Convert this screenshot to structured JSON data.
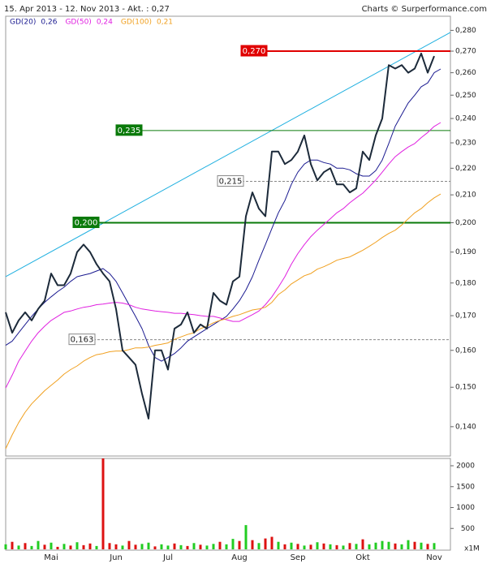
{
  "chart_data": {
    "type": "line",
    "header_left": "15. Apr 2013 - 12. Nov 2013 - Akt. : 0,27",
    "header_right": "Charts © Surperformance.com",
    "log_scale": true,
    "ylim": [
      0.133,
      0.287
    ],
    "yticks": [
      {
        "value": 0.28,
        "label": "0,280"
      },
      {
        "value": 0.27,
        "label": "0,270"
      },
      {
        "value": 0.26,
        "label": "0,260"
      },
      {
        "value": 0.25,
        "label": "0,250"
      },
      {
        "value": 0.24,
        "label": "0,240"
      },
      {
        "value": 0.23,
        "label": "0,230"
      },
      {
        "value": 0.22,
        "label": "0,220"
      },
      {
        "value": 0.21,
        "label": "0,210"
      },
      {
        "value": 0.2,
        "label": "0,200"
      },
      {
        "value": 0.19,
        "label": "0,190"
      },
      {
        "value": 0.18,
        "label": "0,180"
      },
      {
        "value": 0.17,
        "label": "0,170"
      },
      {
        "value": 0.16,
        "label": "0,160"
      },
      {
        "value": 0.15,
        "label": "0,150"
      },
      {
        "value": 0.14,
        "label": "0,140"
      }
    ],
    "categories": [
      null,
      null,
      null,
      null,
      null,
      null,
      null,
      "Mai",
      null,
      null,
      null,
      null,
      null,
      null,
      null,
      null,
      null,
      "Jun",
      null,
      null,
      null,
      null,
      null,
      null,
      null,
      "Jul",
      null,
      null,
      null,
      null,
      null,
      null,
      null,
      null,
      null,
      null,
      "Aug",
      null,
      null,
      null,
      null,
      null,
      null,
      null,
      null,
      "Sep",
      null,
      null,
      null,
      null,
      null,
      null,
      null,
      null,
      null,
      "Okt",
      null,
      null,
      null,
      null,
      null,
      null,
      null,
      null,
      null,
      null,
      "Nov",
      null,
      null
    ],
    "series": [
      {
        "color": "#1c2a3a",
        "values": [
          0.171,
          0.165,
          0.1686,
          0.171,
          0.1686,
          0.172,
          0.1745,
          0.183,
          0.1793,
          0.1793,
          0.183,
          0.19,
          0.1925,
          0.19,
          0.186,
          0.183,
          0.1805,
          0.172,
          0.16,
          0.158,
          0.156,
          0.1483,
          0.142,
          0.16,
          0.16,
          0.1547,
          0.1662,
          0.1674,
          0.171,
          0.165,
          0.1674,
          0.1662,
          0.1769,
          0.1745,
          0.1733,
          0.1805,
          0.182,
          0.2023,
          0.2109,
          0.205,
          0.2023,
          0.2265,
          0.2265,
          0.2216,
          0.2232,
          0.2265,
          0.233,
          0.2216,
          0.2154,
          0.2185,
          0.22,
          0.2139,
          0.2139,
          0.2109,
          0.2124,
          0.2265,
          0.2232,
          0.233,
          0.24,
          0.2635,
          0.2619,
          0.2635,
          0.26,
          0.2619,
          0.2689,
          0.26,
          0.2677,
          null,
          null
        ]
      },
      {
        "name": "GD(20)",
        "last_label": "0,26",
        "color": "#1a1a90",
        "values": [
          0.1614,
          0.1626,
          0.165,
          0.1674,
          0.1698,
          0.172,
          0.174,
          0.1757,
          0.1773,
          0.1787,
          0.1805,
          0.182,
          0.1825,
          0.183,
          0.1838,
          0.1846,
          0.183,
          0.1805,
          0.1769,
          0.1733,
          0.1698,
          0.1662,
          0.1614,
          0.158,
          0.157,
          0.158,
          0.1591,
          0.1607,
          0.1626,
          0.1638,
          0.165,
          0.1662,
          0.1674,
          0.1686,
          0.1698,
          0.172,
          0.1745,
          0.1778,
          0.182,
          0.1873,
          0.1925,
          0.198,
          0.2035,
          0.2079,
          0.2139,
          0.2185,
          0.2216,
          0.2232,
          0.2232,
          0.2222,
          0.2216,
          0.22,
          0.22,
          0.2194,
          0.2179,
          0.217,
          0.217,
          0.2191,
          0.2232,
          0.2297,
          0.2368,
          0.2417,
          0.2466,
          0.25,
          0.2537,
          0.2554,
          0.26,
          0.2617,
          null
        ]
      },
      {
        "name": "GD(50)",
        "last_label": "0,24",
        "color": "#e020e0",
        "values": [
          0.1498,
          0.1532,
          0.157,
          0.1598,
          0.1626,
          0.165,
          0.1669,
          0.1686,
          0.1698,
          0.171,
          0.1714,
          0.172,
          0.1725,
          0.1728,
          0.1733,
          0.1735,
          0.1738,
          0.174,
          0.1738,
          0.1733,
          0.1725,
          0.172,
          0.1717,
          0.1714,
          0.1712,
          0.171,
          0.1707,
          0.1707,
          0.1705,
          0.1703,
          0.17,
          0.1698,
          0.1698,
          0.1693,
          0.1688,
          0.1683,
          0.1683,
          0.1693,
          0.1703,
          0.1714,
          0.1733,
          0.1757,
          0.1787,
          0.182,
          0.186,
          0.1895,
          0.1925,
          0.1952,
          0.1974,
          0.1994,
          0.2014,
          0.2035,
          0.205,
          0.2071,
          0.2089,
          0.2106,
          0.213,
          0.2155,
          0.2185,
          0.2216,
          0.2245,
          0.2265,
          0.2283,
          0.2297,
          0.2321,
          0.2342,
          0.2367,
          0.2383,
          null
        ]
      },
      {
        "name": "GD(100)",
        "last_label": "0,21",
        "color": "#f0a020",
        "values": [
          0.1347,
          0.138,
          0.141,
          0.1436,
          0.1457,
          0.1474,
          0.1491,
          0.1505,
          0.1519,
          0.1535,
          0.1547,
          0.1557,
          0.157,
          0.158,
          0.1588,
          0.1591,
          0.1596,
          0.1598,
          0.1598,
          0.1602,
          0.1607,
          0.1607,
          0.1609,
          0.1614,
          0.1617,
          0.1621,
          0.1631,
          0.1638,
          0.1645,
          0.165,
          0.1662,
          0.1669,
          0.1679,
          0.1686,
          0.1691,
          0.1698,
          0.1703,
          0.171,
          0.1717,
          0.172,
          0.1725,
          0.174,
          0.1764,
          0.1778,
          0.1797,
          0.181,
          0.1823,
          0.183,
          0.1844,
          0.1852,
          0.1862,
          0.1873,
          0.1879,
          0.1884,
          0.1895,
          0.1906,
          0.1919,
          0.1933,
          0.1949,
          0.1963,
          0.1974,
          0.1992,
          0.2014,
          0.2035,
          0.205,
          0.2071,
          0.2089,
          0.2103,
          null
        ]
      }
    ],
    "trendline": {
      "color": "#20b0e0",
      "values": [
        0.182,
        0.279
      ]
    },
    "levels": [
      {
        "value": 0.27,
        "label": "0,270",
        "color": "#e00000",
        "dashed": false
      },
      {
        "value": 0.235,
        "label": "0,235",
        "color": "#0a7a0a",
        "dashed": false
      },
      {
        "value": 0.2,
        "label": "0,200",
        "color": "#0a7a0a",
        "dashed": false
      },
      {
        "value": 0.215,
        "label": "0,215",
        "color": "#888888",
        "dashed": true
      },
      {
        "value": 0.163,
        "label": "0,163",
        "color": "#888888",
        "dashed": true
      }
    ],
    "volume": {
      "type": "bar",
      "unit_label": "x1M",
      "ylim": [
        0,
        2175
      ],
      "yticks": [
        500,
        1000,
        1500,
        2000
      ],
      "series": [
        {
          "color": "#22cc22",
          "values": [
            120,
            null,
            90,
            null,
            80,
            200,
            null,
            160,
            null,
            130,
            null,
            170,
            null,
            null,
            80,
            null,
            null,
            null,
            90,
            null,
            null,
            130,
            160,
            null,
            120,
            90,
            null,
            100,
            null,
            150,
            null,
            90,
            130,
            null,
            120,
            250,
            null,
            580,
            null,
            150,
            null,
            null,
            180,
            null,
            160,
            null,
            90,
            null,
            170,
            null,
            120,
            null,
            90,
            null,
            130,
            null,
            120,
            160,
            200,
            180,
            null,
            120,
            220,
            null,
            160,
            null,
            150,
            null,
            null
          ]
        },
        {
          "color": "#dd1111",
          "values": [
            null,
            180,
            null,
            150,
            null,
            null,
            110,
            null,
            60,
            null,
            90,
            null,
            100,
            140,
            null,
            2175,
            150,
            120,
            null,
            200,
            110,
            null,
            null,
            70,
            null,
            null,
            140,
            null,
            80,
            null,
            110,
            null,
            null,
            180,
            null,
            null,
            200,
            null,
            220,
            null,
            260,
            300,
            null,
            120,
            null,
            130,
            null,
            110,
            null,
            140,
            null,
            100,
            null,
            150,
            null,
            240,
            null,
            null,
            null,
            null,
            140,
            null,
            null,
            180,
            null,
            130,
            null,
            null,
            null
          ]
        }
      ]
    }
  }
}
